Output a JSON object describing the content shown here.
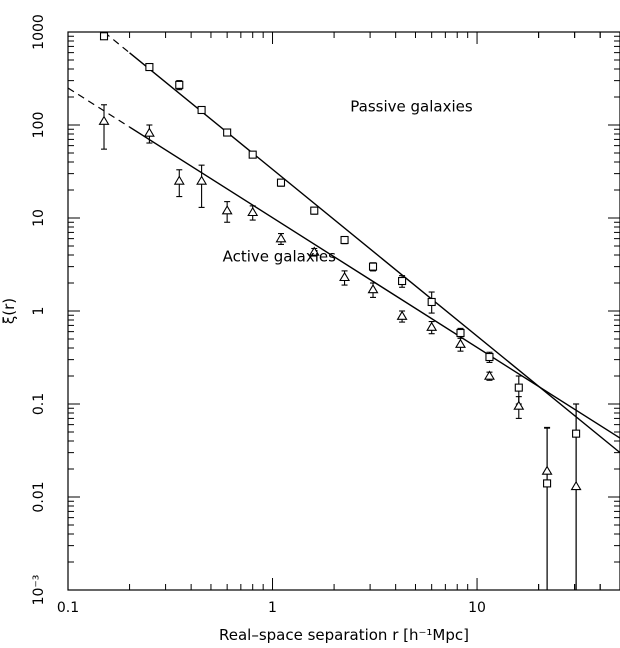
{
  "chart_data": {
    "type": "scatter",
    "title": "",
    "xlabel": "Real–space separation r [h⁻¹Mpc]",
    "ylabel": "ξ(r)",
    "xscale": "log",
    "yscale": "log",
    "xlim": [
      0.1,
      50
    ],
    "ylim": [
      0.001,
      1000
    ],
    "x_ticks": [
      {
        "value": 0.1,
        "label": "0.1"
      },
      {
        "value": 1,
        "label": "1"
      },
      {
        "value": 10,
        "label": "10"
      }
    ],
    "y_ticks": [
      {
        "value": 0.001,
        "label": "10⁻³"
      },
      {
        "value": 0.01,
        "label": "0.01"
      },
      {
        "value": 0.1,
        "label": "0.1"
      },
      {
        "value": 1,
        "label": "1"
      },
      {
        "value": 10,
        "label": "10"
      },
      {
        "value": 100,
        "label": "100"
      },
      {
        "value": 1000,
        "label": "1000"
      }
    ],
    "grid": false,
    "legend": "none",
    "annotations": [
      {
        "text": "Passive galaxies",
        "x": 2.4,
        "y": 140
      },
      {
        "text": "Active galaxies",
        "x": 0.57,
        "y": 3.4
      }
    ],
    "series": [
      {
        "marker": "square",
        "points": [
          {
            "x": 0.15,
            "y": 900,
            "err_lo": 60,
            "err_hi": 60
          },
          {
            "x": 0.25,
            "y": 420,
            "err_lo": 30,
            "err_hi": 30
          },
          {
            "x": 0.35,
            "y": 270,
            "err_lo": 30,
            "err_hi": 30
          },
          {
            "x": 0.45,
            "y": 145,
            "err_lo": 10,
            "err_hi": 10
          },
          {
            "x": 0.6,
            "y": 83,
            "err_lo": 6,
            "err_hi": 6
          },
          {
            "x": 0.8,
            "y": 48,
            "err_lo": 3,
            "err_hi": 3
          },
          {
            "x": 1.1,
            "y": 24,
            "err_lo": 2,
            "err_hi": 2
          },
          {
            "x": 1.6,
            "y": 12,
            "err_lo": 1,
            "err_hi": 1
          },
          {
            "x": 2.25,
            "y": 5.8,
            "err_lo": 0.5,
            "err_hi": 0.5
          },
          {
            "x": 3.1,
            "y": 3.0,
            "err_lo": 0.3,
            "err_hi": 0.3
          },
          {
            "x": 4.3,
            "y": 2.1,
            "err_lo": 0.3,
            "err_hi": 0.3
          },
          {
            "x": 6.0,
            "y": 1.25,
            "err_lo": 0.3,
            "err_hi": 0.35
          },
          {
            "x": 8.3,
            "y": 0.58,
            "err_lo": 0.07,
            "err_hi": 0.07
          },
          {
            "x": 11.5,
            "y": 0.32,
            "err_lo": 0.04,
            "err_hi": 0.04
          },
          {
            "x": 16.0,
            "y": 0.15,
            "err_lo": 0.05,
            "err_hi": 0.05
          },
          {
            "x": 22.0,
            "y": 0.014,
            "err_lo": 0.013,
            "err_hi": 0.042
          },
          {
            "x": 30.5,
            "y": 0.048,
            "err_lo": 0.047,
            "err_hi": 0.052
          }
        ],
        "fit": {
          "x": [
            0.15,
            50
          ],
          "y": [
            1000,
            0.03
          ],
          "dashed_until_x": 0.2
        }
      },
      {
        "marker": "triangle",
        "points": [
          {
            "x": 0.15,
            "y": 110,
            "err_lo": 55,
            "err_hi": 55
          },
          {
            "x": 0.25,
            "y": 82,
            "err_lo": 18,
            "err_hi": 18
          },
          {
            "x": 0.35,
            "y": 25,
            "err_lo": 8,
            "err_hi": 8
          },
          {
            "x": 0.45,
            "y": 25,
            "err_lo": 12,
            "err_hi": 12
          },
          {
            "x": 0.6,
            "y": 12,
            "err_lo": 3,
            "err_hi": 3
          },
          {
            "x": 0.8,
            "y": 11.5,
            "err_lo": 2,
            "err_hi": 2
          },
          {
            "x": 1.1,
            "y": 6.0,
            "err_lo": 0.8,
            "err_hi": 0.8
          },
          {
            "x": 1.6,
            "y": 4.3,
            "err_lo": 0.4,
            "err_hi": 0.4
          },
          {
            "x": 2.25,
            "y": 2.3,
            "err_lo": 0.4,
            "err_hi": 0.4
          },
          {
            "x": 3.1,
            "y": 1.7,
            "err_lo": 0.3,
            "err_hi": 0.3
          },
          {
            "x": 4.3,
            "y": 0.88,
            "err_lo": 0.12,
            "err_hi": 0.12
          },
          {
            "x": 6.0,
            "y": 0.67,
            "err_lo": 0.1,
            "err_hi": 0.1
          },
          {
            "x": 8.3,
            "y": 0.44,
            "err_lo": 0.07,
            "err_hi": 0.07
          },
          {
            "x": 11.5,
            "y": 0.2,
            "err_lo": 0.02,
            "err_hi": 0.02
          },
          {
            "x": 16.0,
            "y": 0.095,
            "err_lo": 0.025,
            "err_hi": 0.025
          },
          {
            "x": 22.0,
            "y": 0.019,
            "err_lo": 0.018,
            "err_hi": 0.036
          },
          {
            "x": 30.5,
            "y": 0.013,
            "err_lo": 0.012,
            "err_hi": 0.087
          }
        ],
        "fit": {
          "x": [
            0.1,
            50
          ],
          "y": [
            250,
            0.043
          ],
          "dashed_until_x": 0.2
        }
      }
    ]
  }
}
